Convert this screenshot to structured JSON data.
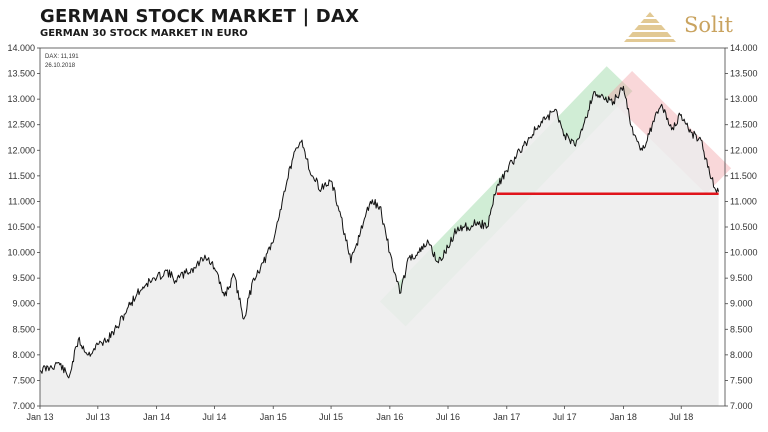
{
  "header": {
    "title": "GERMAN STOCK MARKET | DAX",
    "subtitle": "GERMAN 30 STOCK MARKET IN EURO",
    "logo_text": "Solit"
  },
  "colors": {
    "line": "#111111",
    "area": "#ececec",
    "support": "#e0141b",
    "up_channel": "#8fd39c",
    "down_channel": "#f0a0a4",
    "logo": "#c9a35f"
  },
  "chart_data": {
    "type": "line",
    "title": "GERMAN STOCK MARKET | DAX",
    "subtitle": "GERMAN 30 STOCK MARKET IN EURO",
    "annotation_lines": [
      "DAX: 11,191",
      "26.10.2018"
    ],
    "x_ticks": [
      "Jan 13",
      "Jul 13",
      "Jan 14",
      "Jul 14",
      "Jan 15",
      "Jul 15",
      "Jan 16",
      "Jul 16",
      "Jan 17",
      "Jul 17",
      "Jan 18",
      "Jul 18"
    ],
    "y_ticks": [
      "7.000",
      "7.500",
      "8.000",
      "8.500",
      "9.000",
      "9.500",
      "10.000",
      "10.500",
      "11.000",
      "11.500",
      "12.000",
      "12.500",
      "13.000",
      "13.500",
      "14.000"
    ],
    "ylim": [
      7000,
      14000
    ],
    "xlim": [
      "2013-01-01",
      "2018-11-15"
    ],
    "series": [
      {
        "values": [
          [
            "2013-01-01",
            7700
          ],
          [
            "2013-02-01",
            7750
          ],
          [
            "2013-03-01",
            7850
          ],
          [
            "2013-04-01",
            7550
          ],
          [
            "2013-05-01",
            8300
          ],
          [
            "2013-06-01",
            8000
          ],
          [
            "2013-07-01",
            8200
          ],
          [
            "2013-08-01",
            8300
          ],
          [
            "2013-09-01",
            8550
          ],
          [
            "2013-10-01",
            8900
          ],
          [
            "2013-11-01",
            9200
          ],
          [
            "2013-12-01",
            9400
          ],
          [
            "2014-01-01",
            9500
          ],
          [
            "2014-02-01",
            9650
          ],
          [
            "2014-03-01",
            9450
          ],
          [
            "2014-04-01",
            9600
          ],
          [
            "2014-05-01",
            9700
          ],
          [
            "2014-06-01",
            9950
          ],
          [
            "2014-07-01",
            9700
          ],
          [
            "2014-08-01",
            9150
          ],
          [
            "2014-09-01",
            9550
          ],
          [
            "2014-10-01",
            8700
          ],
          [
            "2014-11-01",
            9500
          ],
          [
            "2014-12-01",
            9800
          ],
          [
            "2015-01-01",
            10200
          ],
          [
            "2015-02-01",
            11100
          ],
          [
            "2015-03-01",
            11800
          ],
          [
            "2015-04-01",
            12200
          ],
          [
            "2015-05-01",
            11500
          ],
          [
            "2015-06-01",
            11250
          ],
          [
            "2015-07-01",
            11400
          ],
          [
            "2015-08-01",
            10700
          ],
          [
            "2015-09-01",
            9800
          ],
          [
            "2015-10-01",
            10400
          ],
          [
            "2015-11-01",
            11000
          ],
          [
            "2015-12-01",
            10900
          ],
          [
            "2016-01-01",
            10000
          ],
          [
            "2016-02-01",
            9200
          ],
          [
            "2016-03-01",
            9900
          ],
          [
            "2016-04-01",
            10000
          ],
          [
            "2016-05-01",
            10200
          ],
          [
            "2016-06-01",
            9800
          ],
          [
            "2016-07-01",
            10100
          ],
          [
            "2016-08-01",
            10500
          ],
          [
            "2016-09-01",
            10500
          ],
          [
            "2016-10-01",
            10600
          ],
          [
            "2016-11-01",
            10500
          ],
          [
            "2016-12-01",
            11300
          ],
          [
            "2017-01-01",
            11600
          ],
          [
            "2017-02-01",
            11900
          ],
          [
            "2017-03-01",
            12150
          ],
          [
            "2017-04-01",
            12400
          ],
          [
            "2017-05-01",
            12600
          ],
          [
            "2017-06-01",
            12800
          ],
          [
            "2017-07-01",
            12300
          ],
          [
            "2017-08-01",
            12100
          ],
          [
            "2017-09-01",
            12550
          ],
          [
            "2017-10-01",
            13150
          ],
          [
            "2017-11-01",
            13000
          ],
          [
            "2017-12-01",
            12950
          ],
          [
            "2018-01-01",
            13250
          ],
          [
            "2018-02-01",
            12300
          ],
          [
            "2018-03-01",
            12000
          ],
          [
            "2018-04-01",
            12500
          ],
          [
            "2018-05-01",
            12900
          ],
          [
            "2018-06-01",
            12400
          ],
          [
            "2018-07-01",
            12700
          ],
          [
            "2018-08-01",
            12350
          ],
          [
            "2018-09-01",
            12200
          ],
          [
            "2018-10-01",
            11450
          ],
          [
            "2018-10-26",
            11191
          ]
        ]
      }
    ],
    "reference_line": {
      "value": 11150,
      "from": "2016-12-01",
      "to": "2018-10-26"
    },
    "channels": [
      {
        "kind": "up",
        "start": [
          "2016-01-10",
          8800
        ],
        "end": [
          "2017-12-20",
          13400
        ],
        "width": 700
      },
      {
        "kind": "down",
        "start": [
          "2017-12-20",
          13300
        ],
        "end": [
          "2018-10-26",
          11400
        ],
        "width": 700
      }
    ],
    "grid": false,
    "legend": "none"
  }
}
